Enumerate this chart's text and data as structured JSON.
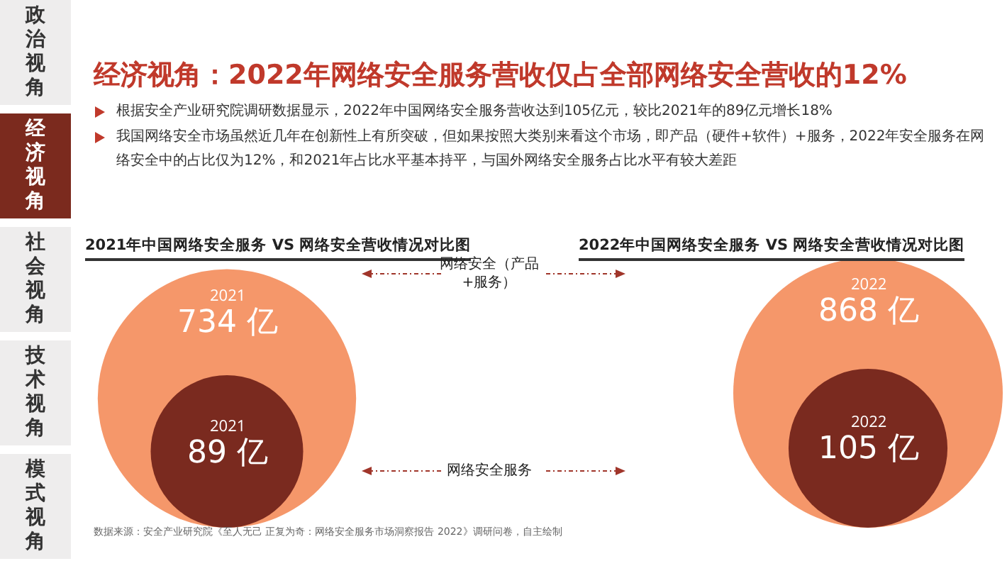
{
  "chart_data": {
    "type": "other",
    "title": "经济视角：2022年网络安全服务营收仅占全部网络安全营收的12%",
    "annotations": [
      "政治视角",
      "经济视角",
      "社会视角",
      "技术视角",
      "模式视角",
      "根据安全产业研究院调研数据显示，2022年中国网络安全服务营收达到105亿元，较比2021年的89亿元增长18%",
      "我国网络安全市场虽然近几年在创新性上有所突破，但如果按照大类别来看这个市场，即产品（硬件+软件）+服务，2022年安全服务在网络安全中的占比仅为12%，和2021年占比水平基本持平，与国外网络安全服务占比水平有较大差距",
      "2021年中国网络安全服务 VS 网络安全营收情况对比图",
      "2022年中国网络安全服务 VS 网络安全营收情况对比图",
      "数据来源：安全产业研究院《至人无己 正复为奇：网络安全服务市场洞察报告 2022》调研问卷，自主绘制"
    ],
    "categories": [
      "网络安全（产品+服务）",
      "网络安全服务"
    ],
    "series": [
      {
        "name": "2021",
        "colors": [
          "#f5976a",
          "#7a2a1f"
        ],
        "values": [
          734,
          89
        ],
        "value_labels": [
          "734 亿",
          "89 亿"
        ]
      },
      {
        "name": "2022",
        "colors": [
          "#f5976a",
          "#7a2a1f"
        ],
        "values": [
          868,
          105
        ],
        "value_labels": [
          "868 亿",
          "105 亿"
        ]
      }
    ]
  }
}
